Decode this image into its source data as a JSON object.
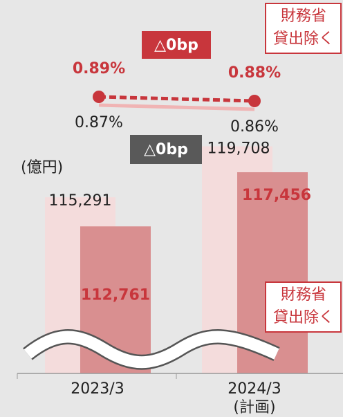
{
  "chart_data": {
    "type": "bar",
    "unit_label": "(億円)",
    "categories": [
      "2023/3",
      "2024/3"
    ],
    "category_notes": [
      null,
      "(計画)"
    ],
    "ylim": [
      100000,
      121000
    ],
    "series": [
      {
        "color": "#f4dcdc",
        "label_color": "#222222",
        "values": [
          115291,
          119708
        ],
        "value_labels": [
          "115,291",
          "119,708"
        ]
      },
      {
        "color": "#d98f90",
        "label_color": "#c8363c",
        "values": [
          112761,
          117456
        ],
        "value_labels": [
          "112,761",
          "117,456"
        ]
      }
    ],
    "y2lim": [
      0.8,
      0.95
    ],
    "rate_series": [
      {
        "axis": "y2",
        "color": "#c8363c",
        "label_color": "#c8363c",
        "dashed": true,
        "values": [
          0.89,
          0.88
        ],
        "value_labels": [
          "0.89%",
          "0.88%"
        ]
      },
      {
        "axis": "y2",
        "color": "#f0b4b4",
        "label_color": "#222222",
        "dashed": false,
        "values": [
          0.87,
          0.86
        ],
        "value_labels": [
          "0.87%",
          "0.86%"
        ]
      }
    ],
    "change_labels": [
      {
        "text": "△0bp",
        "color": "#c8363c"
      },
      {
        "text": "△0bp",
        "color": "#595959"
      }
    ],
    "annotations": [
      {
        "lines": [
          "財務省",
          "貸出除く"
        ]
      },
      {
        "lines": [
          "財務省",
          "貸出除く"
        ]
      }
    ]
  }
}
